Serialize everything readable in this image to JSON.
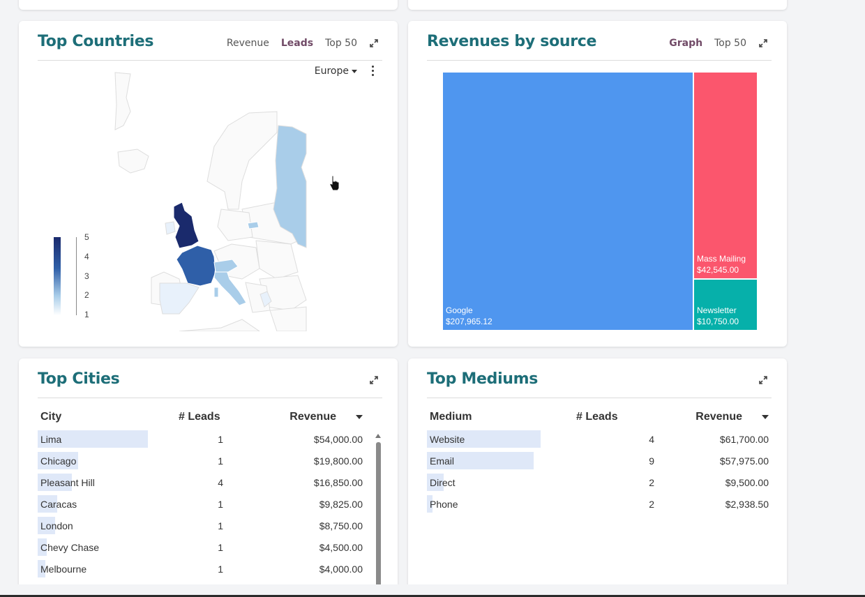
{
  "countries_card": {
    "title": "Top Countries",
    "controls": [
      "Revenue",
      "Leads",
      "Top 50"
    ],
    "active_control": "Leads",
    "region": "Europe",
    "legend_ticks": [
      "5",
      "4",
      "3",
      "2",
      "1"
    ],
    "colors": {
      "uk": "#1a2a6c",
      "france": "#2f5fa8",
      "light": "#a9cde9",
      "pale": "#e8f1fb"
    }
  },
  "revenue_card": {
    "title": "Revenues by source",
    "controls": [
      "Graph",
      "Top 50"
    ],
    "active_control": "Graph",
    "tiles": [
      {
        "name": "Google",
        "value_label": "$207,965.12",
        "value": 207965.12,
        "color": "#4f96ef"
      },
      {
        "name": "Mass Mailing",
        "value_label": "$42,545.00",
        "value": 42545.0,
        "color": "#fb566d"
      },
      {
        "name": "Newsletter",
        "value_label": "$10,750.00",
        "value": 10750.0,
        "color": "#06b0aa"
      }
    ]
  },
  "cities_card": {
    "title": "Top Cities",
    "columns": [
      "City",
      "# Leads",
      "Revenue"
    ],
    "rows": [
      {
        "city": "Lima",
        "leads": "1",
        "revenue": "$54,000.00",
        "share": 1.0
      },
      {
        "city": "Chicago",
        "leads": "1",
        "revenue": "$19,800.00",
        "share": 0.37
      },
      {
        "city": "Pleasant Hill",
        "leads": "4",
        "revenue": "$16,850.00",
        "share": 0.31
      },
      {
        "city": "Caracas",
        "leads": "1",
        "revenue": "$9,825.00",
        "share": 0.18
      },
      {
        "city": "London",
        "leads": "1",
        "revenue": "$8,750.00",
        "share": 0.16
      },
      {
        "city": "Chevy Chase",
        "leads": "1",
        "revenue": "$4,500.00",
        "share": 0.08
      },
      {
        "city": "Melbourne",
        "leads": "1",
        "revenue": "$4,000.00",
        "share": 0.07
      }
    ]
  },
  "mediums_card": {
    "title": "Top Mediums",
    "columns": [
      "Medium",
      "# Leads",
      "Revenue"
    ],
    "rows": [
      {
        "medium": "Website",
        "leads": "4",
        "revenue": "$61,700.00",
        "share": 1.0
      },
      {
        "medium": "Email",
        "leads": "9",
        "revenue": "$57,975.00",
        "share": 0.94
      },
      {
        "medium": "Direct",
        "leads": "2",
        "revenue": "$9,500.00",
        "share": 0.15
      },
      {
        "medium": "Phone",
        "leads": "2",
        "revenue": "$2,938.50",
        "share": 0.05
      }
    ]
  }
}
